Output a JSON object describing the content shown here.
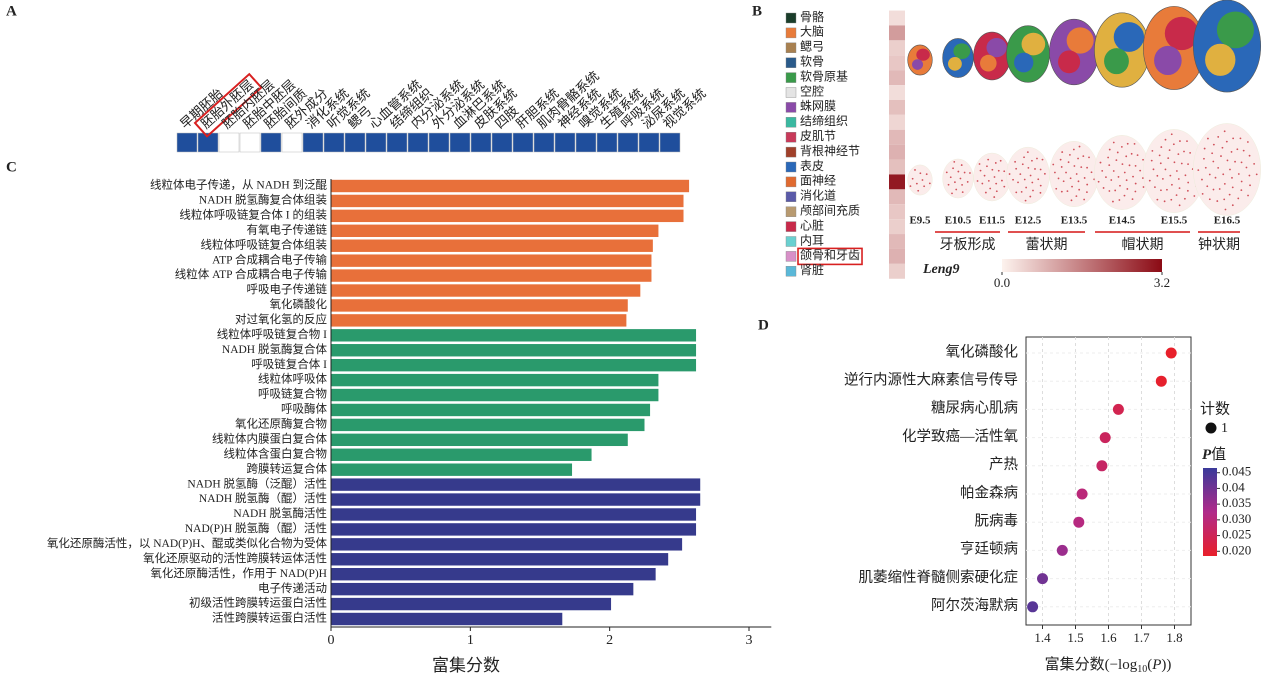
{
  "panel_labels": [
    "A",
    "B",
    "C",
    "D"
  ],
  "chart_data": [
    {
      "type": "strip",
      "color": "#1f4e9c",
      "highlight": 1,
      "categories": [
        "早期胚胎",
        "胚胎外胚层",
        "胚胎内胚层",
        "胚胎中胚层",
        "胚胎间质",
        "胚外成分",
        "消化系统",
        "听觉系统",
        "鳃弓",
        "心血管系统",
        "结缔组织",
        "内分泌系统",
        "外分泌系统",
        "血淋巴系统",
        "皮肤系统",
        "四肢",
        "肝胆系统",
        "肌肉骨骼系统",
        "神经系统",
        "嗅觉系统",
        "生殖系统",
        "呼吸系统",
        "泌尿系统",
        "视觉系统"
      ],
      "values": [
        1,
        1,
        0,
        0,
        1,
        0,
        1,
        1,
        1,
        1,
        1,
        1,
        1,
        1,
        1,
        1,
        1,
        1,
        1,
        1,
        1,
        1,
        1,
        1
      ]
    },
    {
      "type": "tissue-heatmap",
      "highlight": 16,
      "gene": "Leng9",
      "cmap": [
        "#fdf3ee",
        "#8b0a14"
      ],
      "clim": [
        0,
        3.2
      ],
      "cticks": [
        {
          "value": 0,
          "label": "0.0"
        },
        3.2
      ],
      "categories": [
        "骨骼",
        "大脑",
        "鳃弓",
        "软骨",
        "软骨原基",
        "空腔",
        "蛛网膜",
        "结缔组织",
        "皮肌节",
        "背根神经节",
        "表皮",
        "面神经",
        "消化道",
        "颅部间充质",
        "心脏",
        "内耳",
        "颌骨和牙齿",
        "肾脏"
      ],
      "colors": [
        "#1a3d2a",
        "#e87b3a",
        "#a88050",
        "#2a5a8a",
        "#3a9a4a",
        "#e4e4e4",
        "#8a4aa8",
        "#3ab8a0",
        "#c83a5a",
        "#a0402a",
        "#2a68b8",
        "#e06a30",
        "#5a5aa8",
        "#b89a70",
        "#c82a4a",
        "#6ad0d0",
        "#d890c8",
        "#5ab8d8"
      ],
      "values": [
        0.3,
        1.2,
        0.5,
        0.6,
        0.8,
        0.3,
        0.7,
        0.4,
        0.8,
        0.9,
        0.7,
        3.0,
        0.8,
        0.6,
        0.5,
        0.8,
        0.9,
        0.5
      ],
      "stages": [
        "E9.5",
        "E10.5",
        "E11.5",
        "E12.5",
        "E13.5",
        "E14.5",
        "E15.5",
        "E16.5"
      ],
      "stage_groups": [
        "牙板形成",
        "蕾状期",
        "帽状期",
        "钟状期"
      ]
    },
    {
      "type": "bar",
      "xlabel": "富集分数",
      "xlim": [
        0,
        3.16
      ],
      "xticks": [
        0,
        1,
        2,
        3
      ],
      "categories": [
        "线粒体电子传递，从 NADH 到泛醌",
        "NADH 脱氢酶复合体组装",
        "线粒体呼吸链复合体 I 的组装",
        "有氧电子传递链",
        "线粒体呼吸链复合体组装",
        "ATP 合成耦合电子传输",
        "线粒体 ATP 合成耦合电子传输",
        "呼吸电子传递链",
        "氧化磷酸化",
        "对过氧化氢的反应",
        "线粒体呼吸链复合物 I",
        "NADH 脱氢酶复合体",
        "呼吸链复合体 I",
        "线粒体呼吸体",
        "呼吸链复合物",
        "呼吸酶体",
        "氧化还原酶复合物",
        "线粒体内膜蛋白复合体",
        "线粒体含蛋白复合物",
        "跨膜转运复合体",
        "NADH 脱氢酶（泛醌）活性",
        "NADH 脱氢酶（醌）活性",
        "NADH 脱氢酶活性",
        "NAD(P)H 脱氢酶（醌）活性",
        "氧化还原酶活性，以 NAD(P)H、醌或类似化合物为受体",
        "氧化还原驱动的活性跨膜转运体活性",
        "氧化还原酶活性，作用于 NAD(P)H",
        "电子传递活动",
        "初级活性跨膜转运蛋白活性",
        "活性跨膜转运蛋白活性"
      ],
      "values": [
        2.57,
        2.53,
        2.53,
        2.35,
        2.31,
        2.3,
        2.3,
        2.22,
        2.13,
        2.12,
        2.62,
        2.62,
        2.62,
        2.35,
        2.35,
        2.29,
        2.25,
        2.13,
        1.87,
        1.73,
        2.65,
        2.65,
        2.62,
        2.62,
        2.52,
        2.42,
        2.33,
        2.17,
        2.01,
        1.66
      ],
      "colors": [
        "#e8703a",
        "#e8703a",
        "#e8703a",
        "#e8703a",
        "#e8703a",
        "#e8703a",
        "#e8703a",
        "#e8703a",
        "#e8703a",
        "#e8703a",
        "#2a9a6c",
        "#2a9a6c",
        "#2a9a6c",
        "#2a9a6c",
        "#2a9a6c",
        "#2a9a6c",
        "#2a9a6c",
        "#2a9a6c",
        "#2a9a6c",
        "#2a9a6c",
        "#363a8c",
        "#363a8c",
        "#363a8c",
        "#363a8c",
        "#363a8c",
        "#363a8c",
        "#363a8c",
        "#363a8c",
        "#363a8c",
        "#363a8c"
      ]
    },
    {
      "type": "dot",
      "xlabel": [
        "富集分数(−log",
        "10",
        "(",
        "P",
        "))"
      ],
      "xlim": [
        1.35,
        1.85
      ],
      "xticks": [
        1.4,
        1.5,
        1.6,
        1.7,
        1.8
      ],
      "grid": true,
      "categories": [
        "氧化磷酸化",
        "逆行内源性大麻素信号传导",
        "糖尿病心肌病",
        "化学致癌—活性氧",
        "产热",
        "帕金森病",
        "朊病毒",
        "亨廷顿病",
        "肌萎缩性脊髓侧索硬化症",
        "阿尔茨海默病"
      ],
      "values": [
        1.79,
        1.76,
        1.63,
        1.59,
        1.58,
        1.52,
        1.51,
        1.46,
        1.4,
        1.37
      ],
      "pvalues": [
        0.018,
        0.019,
        0.024,
        0.026,
        0.027,
        0.03,
        0.031,
        0.035,
        0.04,
        0.043
      ],
      "sizes": [
        1,
        1,
        1,
        1,
        1,
        1,
        1,
        1,
        1,
        1
      ],
      "size_title": "计数",
      "size_legend": 1,
      "color_title": [
        "P",
        "值"
      ],
      "cmap": [
        "#e8202a",
        "#b02a8a",
        "#3a3a9a"
      ],
      "clim": [
        0.0185,
        0.0465
      ],
      "cticks": [
        0.045,
        0.04,
        0.035,
        {
          "value": 0.03,
          "label": "0.030"
        },
        0.025,
        {
          "value": 0.02,
          "label": "0.020"
        }
      ]
    }
  ]
}
